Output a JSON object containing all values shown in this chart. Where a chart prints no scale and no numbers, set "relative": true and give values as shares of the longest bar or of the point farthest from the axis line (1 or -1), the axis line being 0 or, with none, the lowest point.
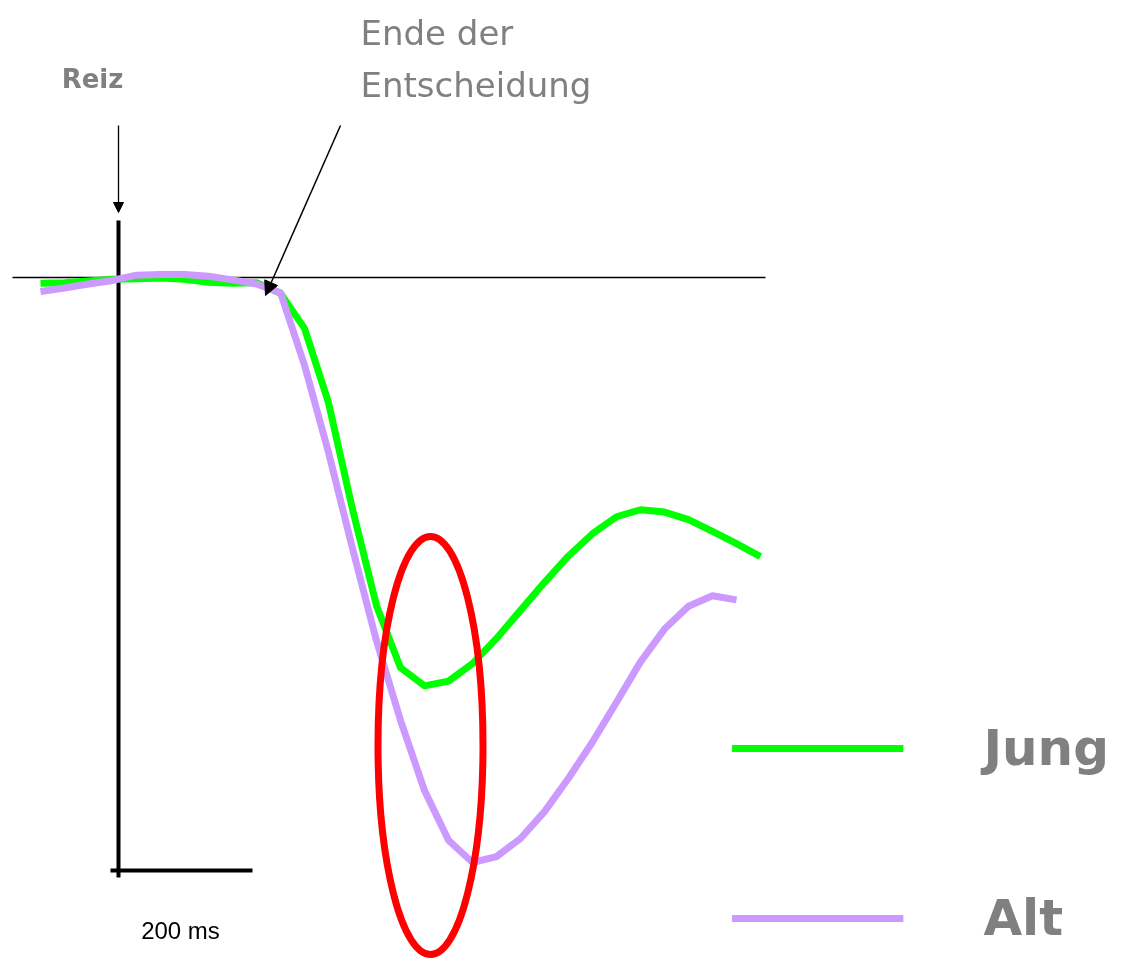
{
  "chart_data": {
    "type": "line",
    "relative": true,
    "categories": [
      null,
      null,
      null,
      null,
      null,
      null,
      null,
      null,
      null,
      null,
      null,
      null,
      null,
      null,
      null,
      null,
      null,
      null,
      null,
      null,
      null,
      null,
      null,
      null,
      null,
      null,
      null,
      null,
      null,
      null,
      null
    ],
    "series": [
      {
        "name": "Jung",
        "color": "#00ff00",
        "values": [
          -0.01,
          -0.009,
          -0.006,
          -0.003,
          -0.002,
          -0.001,
          -0.003,
          -0.008,
          -0.01,
          -0.009,
          -0.027,
          -0.087,
          -0.214,
          -0.396,
          -0.561,
          -0.667,
          -0.698,
          -0.69,
          -0.66,
          -0.617,
          -0.569,
          -0.521,
          -0.476,
          -0.438,
          -0.409,
          -0.397,
          -0.401,
          -0.414,
          -0.434,
          -0.455,
          -0.477
        ]
      },
      {
        "name": "Alt",
        "color": "#cc99ff",
        "values": [
          -0.024,
          -0.018,
          -0.011,
          -0.005,
          0.004,
          0.005,
          0.005,
          0.002,
          -0.004,
          -0.011,
          -0.026,
          -0.15,
          -0.299,
          -0.463,
          -0.621,
          -0.757,
          -0.877,
          -0.962,
          -1.0,
          -0.99,
          -0.959,
          -0.913,
          -0.856,
          -0.794,
          -0.726,
          -0.657,
          -0.601,
          -0.562,
          -0.544,
          -0.551,
          null
        ]
      }
    ],
    "annotations": [
      "Reiz",
      "Ende der\nEntscheidung",
      "200 ms"
    ],
    "legend": "bottom right",
    "grid": false,
    "marker": "none",
    "line_style": "solid"
  }
}
